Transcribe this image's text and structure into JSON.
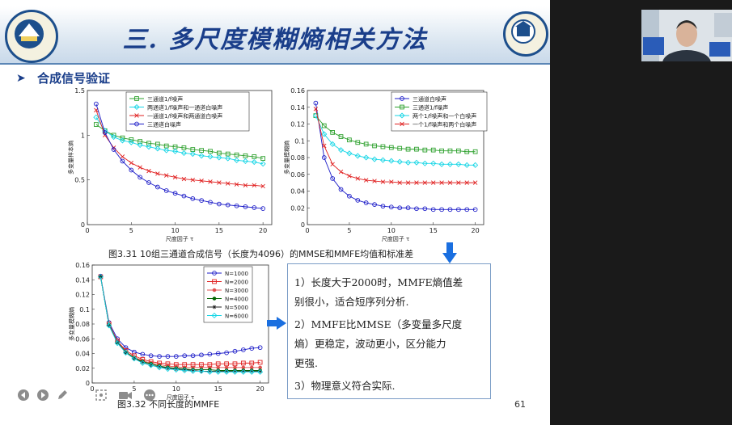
{
  "slide": {
    "title": "三. 多尺度模糊熵相关方法",
    "section": "合成信号验证",
    "page_number": "61",
    "caption1": "图3.31 10组三通道合成信号（长度为4096）的MMSE和MMFE均值和标准差",
    "caption2": "图3.32 不同长度的MMFE",
    "conclusions": [
      "1）长度大于2000时，MMFE熵值差",
      "别很小，适合短序列分析.",
      "2）MMFE比MMSE（多变量多尺度",
      "熵）更稳定，波动更小，区分能力",
      "更强.",
      "3）物理意义符合实际."
    ]
  },
  "colors": {
    "title": "#1a3e8a",
    "green": "#2ca02c",
    "cyan": "#17d6e6",
    "red": "#e02020",
    "blue": "#1c1cc8",
    "black": "#222222",
    "darkgreen": "#006400",
    "arrow": "#1a6fe0"
  },
  "icons": [
    "prev-icon",
    "next-icon",
    "pen-icon",
    "zoom-icon",
    "camera-icon",
    "more-icon"
  ],
  "chart_data": [
    {
      "type": "line",
      "xlabel": "尺度因子 τ",
      "ylabel": "多变量样本熵",
      "xlim": [
        0,
        21
      ],
      "ylim": [
        0,
        1.5
      ],
      "xticks": [
        0,
        5,
        10,
        15,
        20
      ],
      "yticks": [
        0,
        0.5,
        1,
        1.5
      ],
      "x": [
        1,
        2,
        3,
        4,
        5,
        6,
        7,
        8,
        9,
        10,
        11,
        12,
        13,
        14,
        15,
        16,
        17,
        18,
        19,
        20
      ],
      "series": [
        {
          "name": "三通道1/f噪声",
          "color": "#2ca02c",
          "marker": "square",
          "values": [
            1.12,
            1.05,
            1.0,
            0.97,
            0.95,
            0.93,
            0.91,
            0.9,
            0.88,
            0.87,
            0.86,
            0.84,
            0.83,
            0.82,
            0.8,
            0.79,
            0.78,
            0.77,
            0.76,
            0.74
          ]
        },
        {
          "name": "两通道1/f噪声和一通道白噪声",
          "color": "#17d6e6",
          "marker": "diamond",
          "values": [
            1.2,
            1.05,
            0.98,
            0.94,
            0.92,
            0.89,
            0.87,
            0.85,
            0.83,
            0.82,
            0.8,
            0.79,
            0.77,
            0.76,
            0.75,
            0.74,
            0.72,
            0.71,
            0.7,
            0.68
          ]
        },
        {
          "name": "一通道1/f噪声和两通道白噪声",
          "color": "#e02020",
          "marker": "x",
          "values": [
            1.28,
            1.0,
            0.86,
            0.76,
            0.69,
            0.64,
            0.6,
            0.57,
            0.55,
            0.53,
            0.51,
            0.5,
            0.49,
            0.48,
            0.47,
            0.46,
            0.45,
            0.44,
            0.44,
            0.43
          ]
        },
        {
          "name": "三通道白噪声",
          "color": "#1c1cc8",
          "marker": "circle",
          "values": [
            1.35,
            1.03,
            0.84,
            0.71,
            0.61,
            0.53,
            0.47,
            0.42,
            0.38,
            0.35,
            0.32,
            0.29,
            0.27,
            0.25,
            0.23,
            0.22,
            0.21,
            0.2,
            0.19,
            0.18
          ]
        }
      ]
    },
    {
      "type": "line",
      "xlabel": "尺度因子 τ",
      "ylabel": "多变量模糊熵",
      "xlim": [
        0,
        21
      ],
      "ylim": [
        0,
        0.16
      ],
      "xticks": [
        0,
        5,
        10,
        15,
        20
      ],
      "yticks": [
        0,
        0.02,
        0.04,
        0.06,
        0.08,
        0.1,
        0.12,
        0.14,
        0.16
      ],
      "x": [
        1,
        2,
        3,
        4,
        5,
        6,
        7,
        8,
        9,
        10,
        11,
        12,
        13,
        14,
        15,
        16,
        17,
        18,
        19,
        20
      ],
      "series": [
        {
          "name": "三通道白噪声",
          "color": "#1c1cc8",
          "marker": "circle",
          "values": [
            0.145,
            0.08,
            0.055,
            0.042,
            0.034,
            0.029,
            0.026,
            0.024,
            0.022,
            0.021,
            0.02,
            0.02,
            0.019,
            0.019,
            0.018,
            0.018,
            0.018,
            0.018,
            0.018,
            0.018
          ]
        },
        {
          "name": "三通道1/f噪声",
          "color": "#2ca02c",
          "marker": "square",
          "values": [
            0.13,
            0.118,
            0.11,
            0.105,
            0.101,
            0.098,
            0.096,
            0.094,
            0.093,
            0.092,
            0.091,
            0.09,
            0.09,
            0.089,
            0.089,
            0.088,
            0.088,
            0.088,
            0.087,
            0.087
          ]
        },
        {
          "name": "两个1/f噪声和一个白噪声",
          "color": "#17d6e6",
          "marker": "diamond",
          "values": [
            0.13,
            0.108,
            0.096,
            0.089,
            0.085,
            0.082,
            0.08,
            0.078,
            0.077,
            0.076,
            0.075,
            0.074,
            0.074,
            0.073,
            0.073,
            0.072,
            0.072,
            0.072,
            0.071,
            0.071
          ]
        },
        {
          "name": "一个1/f噪声和两个白噪声",
          "color": "#e02020",
          "marker": "x",
          "values": [
            0.138,
            0.094,
            0.072,
            0.063,
            0.058,
            0.055,
            0.053,
            0.052,
            0.051,
            0.051,
            0.05,
            0.05,
            0.05,
            0.05,
            0.05,
            0.05,
            0.05,
            0.05,
            0.05,
            0.05
          ]
        }
      ]
    },
    {
      "type": "line",
      "xlabel": "尺度因子 τ",
      "ylabel": "多变量模糊熵",
      "xlim": [
        0,
        21
      ],
      "ylim": [
        0,
        0.16
      ],
      "xticks": [
        0,
        5,
        10,
        15,
        20
      ],
      "yticks": [
        0,
        0.02,
        0.04,
        0.06,
        0.08,
        0.1,
        0.12,
        0.14,
        0.16
      ],
      "x": [
        1,
        2,
        3,
        4,
        5,
        6,
        7,
        8,
        9,
        10,
        11,
        12,
        13,
        14,
        15,
        16,
        17,
        18,
        19,
        20
      ],
      "series": [
        {
          "name": "N=1000",
          "color": "#1c1cc8",
          "marker": "circle",
          "values": [
            0.145,
            0.082,
            0.06,
            0.048,
            0.042,
            0.039,
            0.037,
            0.036,
            0.036,
            0.036,
            0.037,
            0.037,
            0.038,
            0.039,
            0.04,
            0.041,
            0.043,
            0.045,
            0.047,
            0.048
          ]
        },
        {
          "name": "N=2000",
          "color": "#e02020",
          "marker": "square",
          "values": [
            0.144,
            0.08,
            0.057,
            0.044,
            0.037,
            0.032,
            0.029,
            0.027,
            0.026,
            0.025,
            0.025,
            0.025,
            0.025,
            0.025,
            0.026,
            0.026,
            0.026,
            0.027,
            0.027,
            0.028
          ]
        },
        {
          "name": "N=3000",
          "color": "#e05050",
          "marker": "dot",
          "values": [
            0.144,
            0.079,
            0.056,
            0.042,
            0.035,
            0.03,
            0.027,
            0.025,
            0.023,
            0.022,
            0.021,
            0.021,
            0.021,
            0.021,
            0.021,
            0.021,
            0.021,
            0.021,
            0.021,
            0.021
          ]
        },
        {
          "name": "N=4000",
          "color": "#006400",
          "marker": "dot",
          "values": [
            0.144,
            0.079,
            0.055,
            0.042,
            0.034,
            0.029,
            0.026,
            0.023,
            0.021,
            0.02,
            0.019,
            0.018,
            0.018,
            0.018,
            0.017,
            0.017,
            0.017,
            0.017,
            0.017,
            0.017
          ]
        },
        {
          "name": "N=5000",
          "color": "#222222",
          "marker": "star",
          "values": [
            0.144,
            0.078,
            0.055,
            0.041,
            0.033,
            0.028,
            0.024,
            0.022,
            0.02,
            0.019,
            0.018,
            0.017,
            0.016,
            0.016,
            0.016,
            0.016,
            0.016,
            0.016,
            0.016,
            0.016
          ]
        },
        {
          "name": "N=6000",
          "color": "#17d6e6",
          "marker": "diamond",
          "values": [
            0.144,
            0.078,
            0.054,
            0.041,
            0.033,
            0.027,
            0.024,
            0.021,
            0.019,
            0.018,
            0.017,
            0.016,
            0.016,
            0.015,
            0.015,
            0.015,
            0.015,
            0.015,
            0.015,
            0.015
          ]
        }
      ]
    }
  ]
}
